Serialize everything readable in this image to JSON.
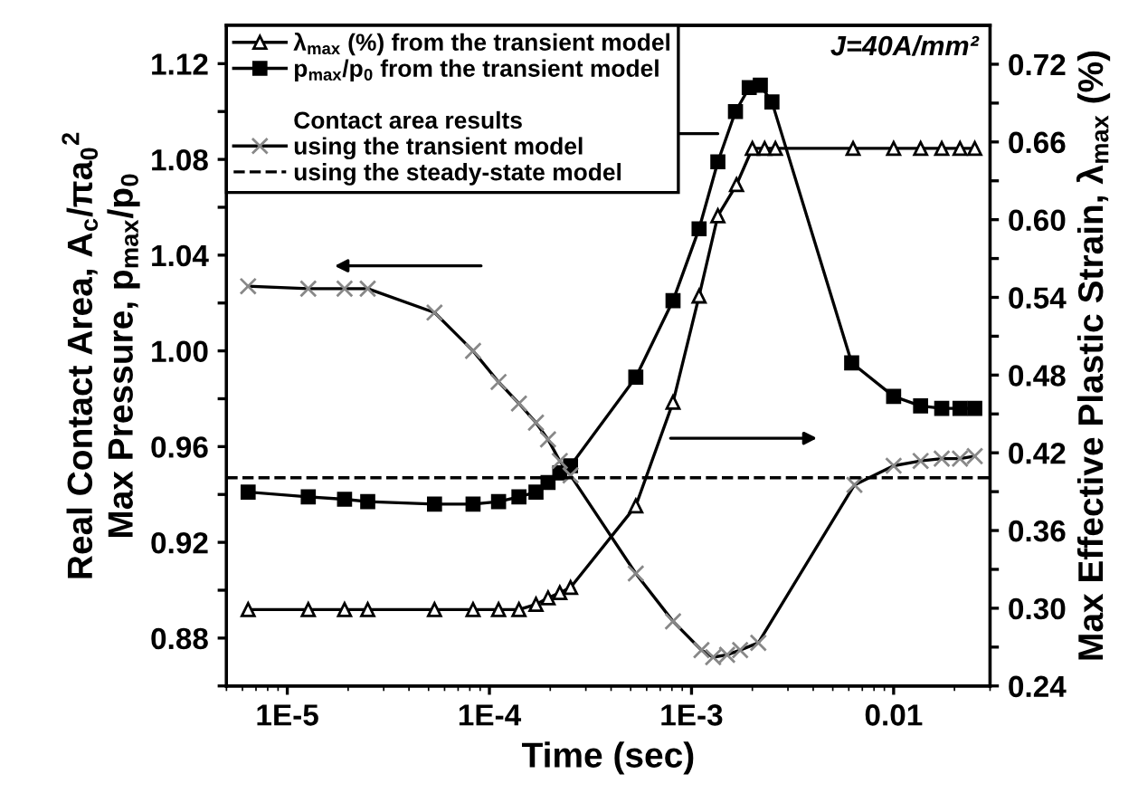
{
  "chart_data": {
    "type": "line",
    "xlabel": "Time (sec)",
    "ylabel": "Real Contact Area, A$_{c}$/πa$_{0}$$^{2}$\nMax Pressure, p$_{max}$/p$_{0}$",
    "y2label": "Max Effective Plastic Strain, λ$_{max}$ (%)",
    "log": "x",
    "xlim": [
      5e-06,
      0.03
    ],
    "xticks": [
      {
        "value": 1e-05,
        "label": "1E-5"
      },
      {
        "value": 0.0001,
        "label": "1E-4"
      },
      {
        "value": 0.001,
        "label": "1E-3"
      },
      {
        "value": 0.01,
        "label": "0.01"
      }
    ],
    "ylim": [
      0.86,
      1.136
    ],
    "yticks": [
      {
        "value": 0.86,
        "label": null
      },
      0.88,
      {
        "value": 0.9,
        "label": null
      },
      0.92,
      {
        "value": 0.94,
        "label": null
      },
      0.96,
      {
        "value": 0.98,
        "label": null
      },
      {
        "value": 1.0,
        "label": "1.00"
      },
      {
        "value": 1.02,
        "label": null
      },
      1.04,
      {
        "value": 1.06,
        "label": null
      },
      1.08,
      {
        "value": 1.1,
        "label": null
      },
      1.12
    ],
    "y2lim": [
      0.24,
      0.75
    ],
    "y2ticks": [
      0.24,
      {
        "value": 0.27,
        "label": null
      },
      {
        "value": 0.3,
        "label": "0.30"
      },
      {
        "value": 0.33,
        "label": null
      },
      0.36,
      {
        "value": 0.39,
        "label": null
      },
      0.42,
      {
        "value": 0.45,
        "label": null
      },
      0.48,
      {
        "value": 0.51,
        "label": null
      },
      0.54,
      {
        "value": 0.57,
        "label": null
      },
      {
        "value": 0.6,
        "label": "0.60"
      },
      {
        "value": 0.63,
        "label": null
      },
      0.66,
      {
        "value": 0.69,
        "label": null
      },
      0.72
    ],
    "legend": "top left",
    "legend_title": "Contact area results",
    "grid": false,
    "series": [
      {
        "name": "λ$_{max}$ (%) from the transient model",
        "color": "#000000",
        "axis": "y2",
        "marker": "triangle",
        "x": [
          6.4e-06,
          1.27e-05,
          1.92e-05,
          2.5e-05,
          5.35e-05,
          8.3e-05,
          0.000111,
          0.00014,
          0.00017,
          0.000195,
          0.000223,
          0.000252,
          0.00053,
          0.00081,
          0.00109,
          0.00135,
          0.00167,
          0.002,
          0.0023,
          0.0026,
          0.0063,
          0.01,
          0.0136,
          0.0173,
          0.0213,
          0.0252
        ],
        "values": [
          0.299,
          0.299,
          0.299,
          0.299,
          0.299,
          0.299,
          0.299,
          0.299,
          0.303,
          0.308,
          0.312,
          0.316,
          0.379,
          0.459,
          0.541,
          0.603,
          0.627,
          0.655,
          0.655,
          0.655,
          0.655,
          0.655,
          0.655,
          0.655,
          0.655,
          0.655
        ]
      },
      {
        "name": "p$_{max}$/p$_{0}$ from the transient model",
        "color": "#000000",
        "marker": "square",
        "x": [
          6.4e-06,
          1.27e-05,
          1.92e-05,
          2.5e-05,
          5.35e-05,
          8.3e-05,
          0.000111,
          0.00014,
          0.00017,
          0.000195,
          0.000223,
          0.000252,
          0.00053,
          0.00081,
          0.00109,
          0.00135,
          0.00165,
          0.00193,
          0.00219,
          0.0025,
          0.0062,
          0.01,
          0.0136,
          0.0173,
          0.0213,
          0.0252
        ],
        "values": [
          0.941,
          0.939,
          0.938,
          0.937,
          0.936,
          0.936,
          0.937,
          0.939,
          0.941,
          0.945,
          0.949,
          0.952,
          0.989,
          1.021,
          1.051,
          1.079,
          1.1,
          1.11,
          1.111,
          1.104,
          0.995,
          0.981,
          0.977,
          0.976,
          0.976,
          0.976
        ]
      },
      {
        "name": "using the transient model",
        "color": "#000000",
        "marker": "cross",
        "x": [
          6.4e-06,
          1.27e-05,
          1.92e-05,
          2.5e-05,
          5.35e-05,
          8.3e-05,
          0.000111,
          0.00014,
          0.00017,
          0.000195,
          0.000223,
          0.000252,
          0.00053,
          0.00081,
          0.00112,
          0.00128,
          0.0015,
          0.00174,
          0.00214,
          0.0064,
          0.01,
          0.0136,
          0.0173,
          0.0213,
          0.0252
        ],
        "values": [
          1.027,
          1.026,
          1.026,
          1.026,
          1.016,
          1.0,
          0.987,
          0.978,
          0.97,
          0.963,
          0.954,
          0.948,
          0.907,
          0.887,
          0.875,
          0.872,
          0.873,
          0.875,
          0.878,
          0.944,
          0.952,
          0.954,
          0.955,
          0.955,
          0.956
        ]
      }
    ],
    "ref_lines": [
      {
        "axis": "y",
        "value": 0.947,
        "label": "using the steady-state model",
        "color": "#000000",
        "line_style": "dashed"
      }
    ],
    "annotations": [
      "J=40A/mm²"
    ]
  }
}
